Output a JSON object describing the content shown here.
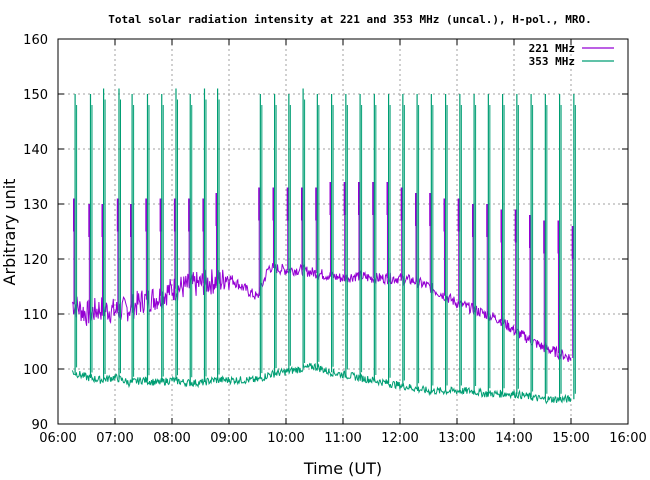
{
  "chart_data": {
    "type": "line",
    "title": "Total solar radiation intensity at 221 and 353 MHz (uncal.), H-pol., MRO.",
    "xlabel": "Time (UT)",
    "ylabel": "Arbitrary unit",
    "x_ticks": [
      "06:00",
      "07:00",
      "08:00",
      "09:00",
      "10:00",
      "11:00",
      "12:00",
      "13:00",
      "14:00",
      "15:00",
      "16:00"
    ],
    "y_ticks": [
      "90",
      "100",
      "110",
      "120",
      "130",
      "140",
      "150",
      "160"
    ],
    "xlim_hours": [
      6,
      16
    ],
    "ylim": [
      90,
      160
    ],
    "grid": true,
    "legend_position": "top-right",
    "series": [
      {
        "name": "221 MHz",
        "color": "#9400d3",
        "x_hours": [
          6.25,
          6.5,
          6.75,
          7.0,
          7.25,
          7.5,
          7.75,
          8.0,
          8.25,
          8.5,
          8.75,
          8.88,
          8.95,
          9.5,
          9.7,
          10.0,
          10.25,
          10.5,
          10.75,
          11.0,
          11.25,
          11.5,
          11.75,
          12.0,
          12.25,
          12.5,
          12.75,
          13.0,
          13.25,
          13.5,
          13.75,
          14.0,
          14.25,
          14.5,
          14.75,
          15.0
        ],
        "values": [
          112,
          110,
          111,
          110.5,
          111,
          112.5,
          113,
          114.5,
          115,
          115.5,
          116,
          116,
          117,
          113,
          118.5,
          118,
          118,
          117.5,
          117,
          116.5,
          117,
          116.5,
          116.5,
          116.5,
          116,
          115,
          113.5,
          112,
          111,
          110,
          109,
          107,
          105.5,
          104,
          103,
          102
        ],
        "spikes_x_hours": [
          6.28,
          6.55,
          6.78,
          7.05,
          7.28,
          7.55,
          7.8,
          8.05,
          8.3,
          8.55,
          8.78,
          9.53,
          9.78,
          10.03,
          10.28,
          10.53,
          10.78,
          11.03,
          11.28,
          11.53,
          11.78,
          12.03,
          12.28,
          12.53,
          12.78,
          13.03,
          13.28,
          13.53,
          13.78,
          14.03,
          14.28,
          14.53,
          14.78,
          15.03
        ],
        "spike_levels": [
          131,
          130,
          130,
          131,
          130,
          131,
          131,
          131,
          131,
          131,
          132,
          133,
          133,
          133,
          133,
          133,
          134,
          134,
          134,
          134,
          134,
          133,
          132,
          132,
          131,
          131,
          130,
          130,
          129,
          129,
          128,
          127,
          127,
          126
        ]
      },
      {
        "name": "353 MHz",
        "color": "#009e73",
        "x_hours": [
          6.25,
          6.5,
          6.75,
          7.0,
          7.25,
          7.5,
          7.75,
          8.0,
          8.25,
          8.5,
          8.75,
          8.88,
          9.0,
          9.5,
          9.7,
          10.0,
          10.25,
          10.5,
          10.75,
          11.0,
          11.25,
          11.5,
          11.75,
          12.0,
          12.25,
          12.5,
          12.75,
          13.0,
          13.25,
          13.5,
          13.75,
          14.0,
          14.25,
          14.5,
          14.75,
          15.0
        ],
        "values": [
          99.5,
          98.5,
          98,
          98.5,
          97.5,
          98,
          97.5,
          98,
          97.5,
          97.5,
          98,
          98,
          98,
          98,
          99,
          99.5,
          100,
          100.5,
          99.5,
          99,
          98.5,
          98,
          97.5,
          97,
          96.5,
          96,
          96,
          96,
          96,
          95.5,
          95.5,
          95.5,
          95,
          94.5,
          94.5,
          94.5
        ],
        "spikes_x_hours": [
          6.3,
          6.57,
          6.8,
          7.07,
          7.3,
          7.57,
          7.82,
          8.07,
          8.32,
          8.57,
          8.8,
          9.55,
          9.8,
          10.05,
          10.3,
          10.55,
          10.8,
          11.05,
          11.3,
          11.55,
          11.8,
          12.05,
          12.3,
          12.55,
          12.8,
          13.05,
          13.3,
          13.55,
          13.8,
          14.05,
          14.3,
          14.55,
          14.8,
          15.05
        ],
        "spike_levels": [
          150,
          150,
          151,
          151,
          150,
          150,
          150,
          151,
          150,
          151,
          151,
          150,
          150,
          150,
          151,
          150,
          150,
          150,
          150,
          150,
          150,
          150,
          150,
          150,
          150,
          150,
          150,
          150,
          150,
          150,
          150,
          150,
          150,
          150
        ]
      }
    ]
  }
}
